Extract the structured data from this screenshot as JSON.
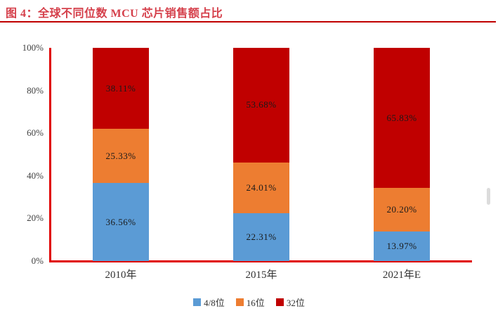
{
  "header": {
    "title": "图 4：全球不同位数 MCU 芯片销售额占比"
  },
  "colors": {
    "title_text": "#D5404B",
    "title_underline": "#C00000",
    "axis_line": "#E00000",
    "data_label_text": "#1A1A1A",
    "tick_label_text": "#404040"
  },
  "chart_data": {
    "type": "bar",
    "stacked": true,
    "title": "图 4：全球不同位数 MCU 芯片销售额占比",
    "categories": [
      "2010年",
      "2015年",
      "2021年E"
    ],
    "series": [
      {
        "name": "4/8位",
        "color": "#5B9BD5",
        "values": [
          36.56,
          22.31,
          13.97
        ],
        "labels": [
          "36.56%",
          "22.31%",
          "13.97%"
        ]
      },
      {
        "name": "16位",
        "color": "#ED7D31",
        "values": [
          25.33,
          24.01,
          20.2
        ],
        "labels": [
          "25.33%",
          "24.01%",
          "20.20%"
        ]
      },
      {
        "name": "32位",
        "color": "#C00000",
        "values": [
          38.11,
          53.68,
          65.83
        ],
        "labels": [
          "38.11%",
          "53.68%",
          "65.83%"
        ]
      }
    ],
    "ylim": [
      0,
      100
    ],
    "yticks": [
      "0%",
      "20%",
      "40%",
      "60%",
      "80%",
      "100%"
    ],
    "ytick_values": [
      0,
      20,
      40,
      60,
      80,
      100
    ],
    "grid": false,
    "legend_position": "bottom"
  },
  "scrollbar": {
    "visible": true
  }
}
